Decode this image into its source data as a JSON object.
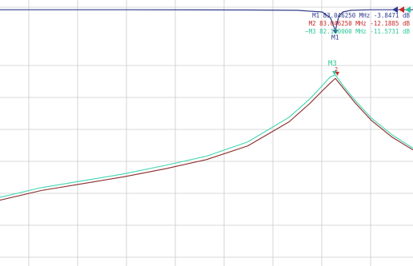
{
  "chart_data": {
    "type": "line",
    "x_unit": "MHz",
    "y_unit": "dB",
    "grid": true,
    "colors": {
      "s11": "#2f3b8c",
      "trace_red": "#8b2a2a",
      "trace_cyan": "#3fd6b0",
      "marker_m1": "#2f3b8c",
      "marker_m2": "#c62828",
      "marker_m3": "#2fc79a",
      "grid": "#cccccc"
    },
    "markers": [
      {
        "name": "M1",
        "freq": "83.046250 MHz",
        "value": "-3.8471 dB",
        "prefix": "",
        "color": "#2f3b8c"
      },
      {
        "name": "M2",
        "freq": "83.046250 MHz",
        "value": "-12.1885 dB",
        "prefix": "",
        "color": "#c62828"
      },
      {
        "name": "M3",
        "freq": "82.180000 MHz",
        "value": "-11.5731 dB",
        "prefix": "~",
        "color": "#2fc79a"
      }
    ],
    "marker_labels": {
      "m1": "M1",
      "m3": "M3",
      "m2": "2"
    },
    "series": [
      {
        "color": "#2f3b8c",
        "x": [
          0,
          0.3,
          0.6,
          0.72,
          0.78,
          0.8,
          0.812,
          0.82,
          0.83,
          0.85,
          0.9,
          1.0
        ],
        "y": [
          -0.2,
          -0.2,
          -0.25,
          -0.3,
          -0.6,
          -1.6,
          -3.85,
          -1.4,
          -0.6,
          -0.3,
          -0.2,
          -0.2
        ]
      },
      {
        "color": "#8b2a2a",
        "x": [
          0,
          0.1,
          0.2,
          0.3,
          0.4,
          0.5,
          0.6,
          0.7,
          0.75,
          0.78,
          0.8,
          0.812,
          0.83,
          0.86,
          0.9,
          0.95,
          1.0
        ],
        "y": [
          -33.5,
          -31.8,
          -30.6,
          -29.4,
          -28.0,
          -26.4,
          -24.0,
          -19.8,
          -16.6,
          -14.4,
          -13.0,
          -12.2,
          -13.8,
          -16.5,
          -19.6,
          -22.5,
          -24.7
        ]
      },
      {
        "color": "#3fd6b0",
        "x": [
          0,
          0.1,
          0.2,
          0.3,
          0.4,
          0.5,
          0.6,
          0.7,
          0.75,
          0.78,
          0.8,
          0.812,
          0.83,
          0.86,
          0.9,
          0.95,
          1.0
        ],
        "y": [
          -33.0,
          -31.3,
          -30.1,
          -28.9,
          -27.4,
          -25.8,
          -23.3,
          -19.0,
          -15.8,
          -13.5,
          -11.9,
          -11.6,
          -13.4,
          -16.1,
          -19.2,
          -22.1,
          -24.4
        ]
      }
    ]
  }
}
